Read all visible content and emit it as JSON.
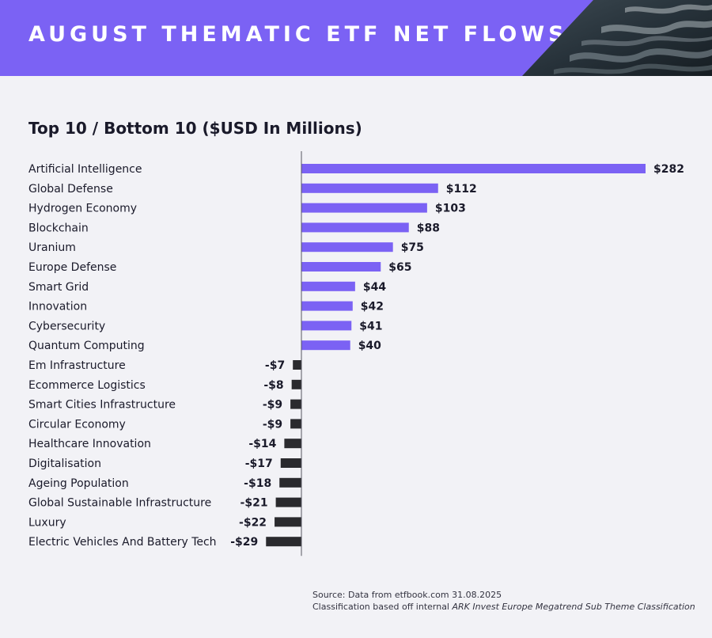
{
  "header": {
    "title": "AUGUST THEMATIC ETF NET FLOWS"
  },
  "chart_data": {
    "type": "bar",
    "orientation": "horizontal",
    "title": "Top 10 / Bottom 10 ($USD In Millions)",
    "categories": [
      "Artificial Intelligence",
      "Global Defense",
      "Hydrogen Economy",
      "Blockchain",
      "Uranium",
      "Europe Defense",
      "Smart Grid",
      "Innovation",
      "Cybersecurity",
      "Quantum Computing",
      "Em Infrastructure",
      "Ecommerce Logistics",
      "Smart Cities Infrastructure",
      "Circular Economy",
      "Healthcare Innovation",
      "Digitalisation",
      "Ageing Population",
      "Global Sustainable Infrastructure",
      "Luxury",
      "Electric Vehicles And Battery Tech"
    ],
    "values": [
      282,
      112,
      103,
      88,
      75,
      65,
      44,
      42,
      41,
      40,
      -7,
      -8,
      -9,
      -9,
      -14,
      -17,
      -18,
      -21,
      -22,
      -29
    ],
    "value_labels": [
      "$282",
      "$112",
      "$103",
      "$88",
      "$75",
      "$65",
      "$44",
      "$42",
      "$41",
      "$40",
      "-$7",
      "-$8",
      "-$9",
      "-$9",
      "-$14",
      "-$17",
      "-$18",
      "-$21",
      "-$22",
      "-$29"
    ],
    "colors": {
      "positive": "#7b62f4",
      "negative": "#2a2a2e",
      "axis": "#555560",
      "text": "#1a1a2a"
    },
    "grid": false,
    "legend": "none"
  },
  "source": {
    "line1": "Source: Data from etfbook.com 31.08.2025",
    "line2_prefix": "Classification based off internal ",
    "line2_emphasis": "ARK Invest Europe Megatrend Sub Theme Classification"
  }
}
